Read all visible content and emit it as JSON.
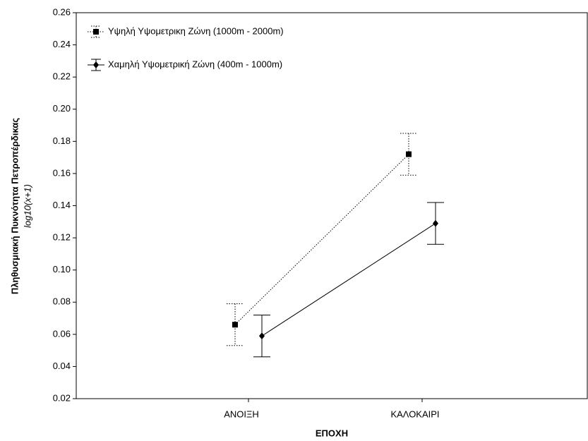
{
  "chart_data": {
    "type": "line",
    "y_label": "Πληθυσμιακή Πυκνότητα Πετροπέρδικας",
    "y_label_sub": "log10(x+1)",
    "x_label": "ΕΠΟΧΗ",
    "categories": [
      "ΑΝΟΙΞΗ",
      "ΚΑΛΟΚΑΙΡΙ"
    ],
    "series": [
      {
        "name": "Υψηλή Υψομετρικη Ζώνη (1000m - 2000m)",
        "color": "#000000",
        "dash": "dotted",
        "marker": "square",
        "values": [
          0.066,
          0.172
        ],
        "errors": [
          0.013,
          0.013
        ]
      },
      {
        "name": "Χαμηλή Υψομετρική Ζώνη (400m - 1000m)",
        "color": "#000000",
        "dash": "solid",
        "marker": "diamond",
        "values": [
          0.059,
          0.129
        ],
        "errors": [
          0.013,
          0.013
        ]
      }
    ],
    "ylim": [
      0.02,
      0.26
    ],
    "yticks": [
      0.02,
      0.04,
      0.06,
      0.08,
      {
        "value": 0.1,
        "label": "0.10"
      },
      0.12,
      0.14,
      0.16,
      0.18,
      {
        "value": 0.2,
        "label": "0.20"
      },
      0.22,
      0.24,
      0.26
    ]
  }
}
